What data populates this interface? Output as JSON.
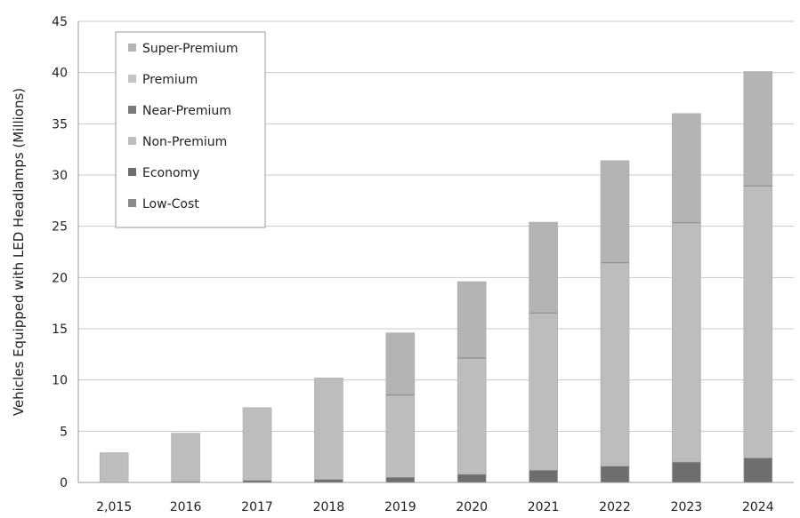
{
  "chart_data": {
    "type": "bar",
    "stacked": true,
    "title": "",
    "xlabel": "",
    "ylabel": "Vehicles Equipped with LED Headlamps (Millions)",
    "ylim": [
      0,
      45
    ],
    "yticks": [
      0,
      5,
      10,
      15,
      20,
      25,
      30,
      35,
      40,
      45
    ],
    "grid": true,
    "legend_position": "top-left",
    "categories": [
      "2,015",
      "2016",
      "2017",
      "2018",
      "2019",
      "2020",
      "2021",
      "2022",
      "2023",
      "2024"
    ],
    "series": [
      {
        "name": "Low-Cost",
        "color": "#8a8a8a",
        "values": [
          0,
          0,
          0,
          0,
          0,
          0,
          0,
          0,
          0,
          0
        ]
      },
      {
        "name": "Economy",
        "color": "#6e6e6e",
        "values": [
          0,
          0.1,
          0.2,
          0.3,
          0.5,
          0.8,
          1.2,
          1.6,
          2.0,
          2.4
        ]
      },
      {
        "name": "Non-Premium",
        "color": "#bdbdbd",
        "values": [
          2.9,
          4.7,
          7.1,
          9.9,
          8.0,
          11.3,
          15.3,
          19.8,
          23.3,
          26.5
        ]
      },
      {
        "name": "Near-Premium",
        "color": "#7a7a7a",
        "values": [
          0,
          0,
          0,
          0,
          0.1,
          0.1,
          0.1,
          0.1,
          0.1,
          0.1
        ]
      },
      {
        "name": "Premium",
        "color": "#c4c4c4",
        "values": [
          0,
          0,
          0,
          0,
          0,
          0,
          0,
          0,
          0,
          0
        ]
      },
      {
        "name": "Super-Premium",
        "color": "#b4b4b4",
        "values": [
          0,
          0,
          0,
          0,
          6.0,
          7.4,
          8.8,
          9.9,
          10.6,
          11.1
        ]
      }
    ],
    "legend_order": [
      "Super-Premium",
      "Premium",
      "Near-Premium",
      "Non-Premium",
      "Economy",
      "Low-Cost"
    ]
  }
}
